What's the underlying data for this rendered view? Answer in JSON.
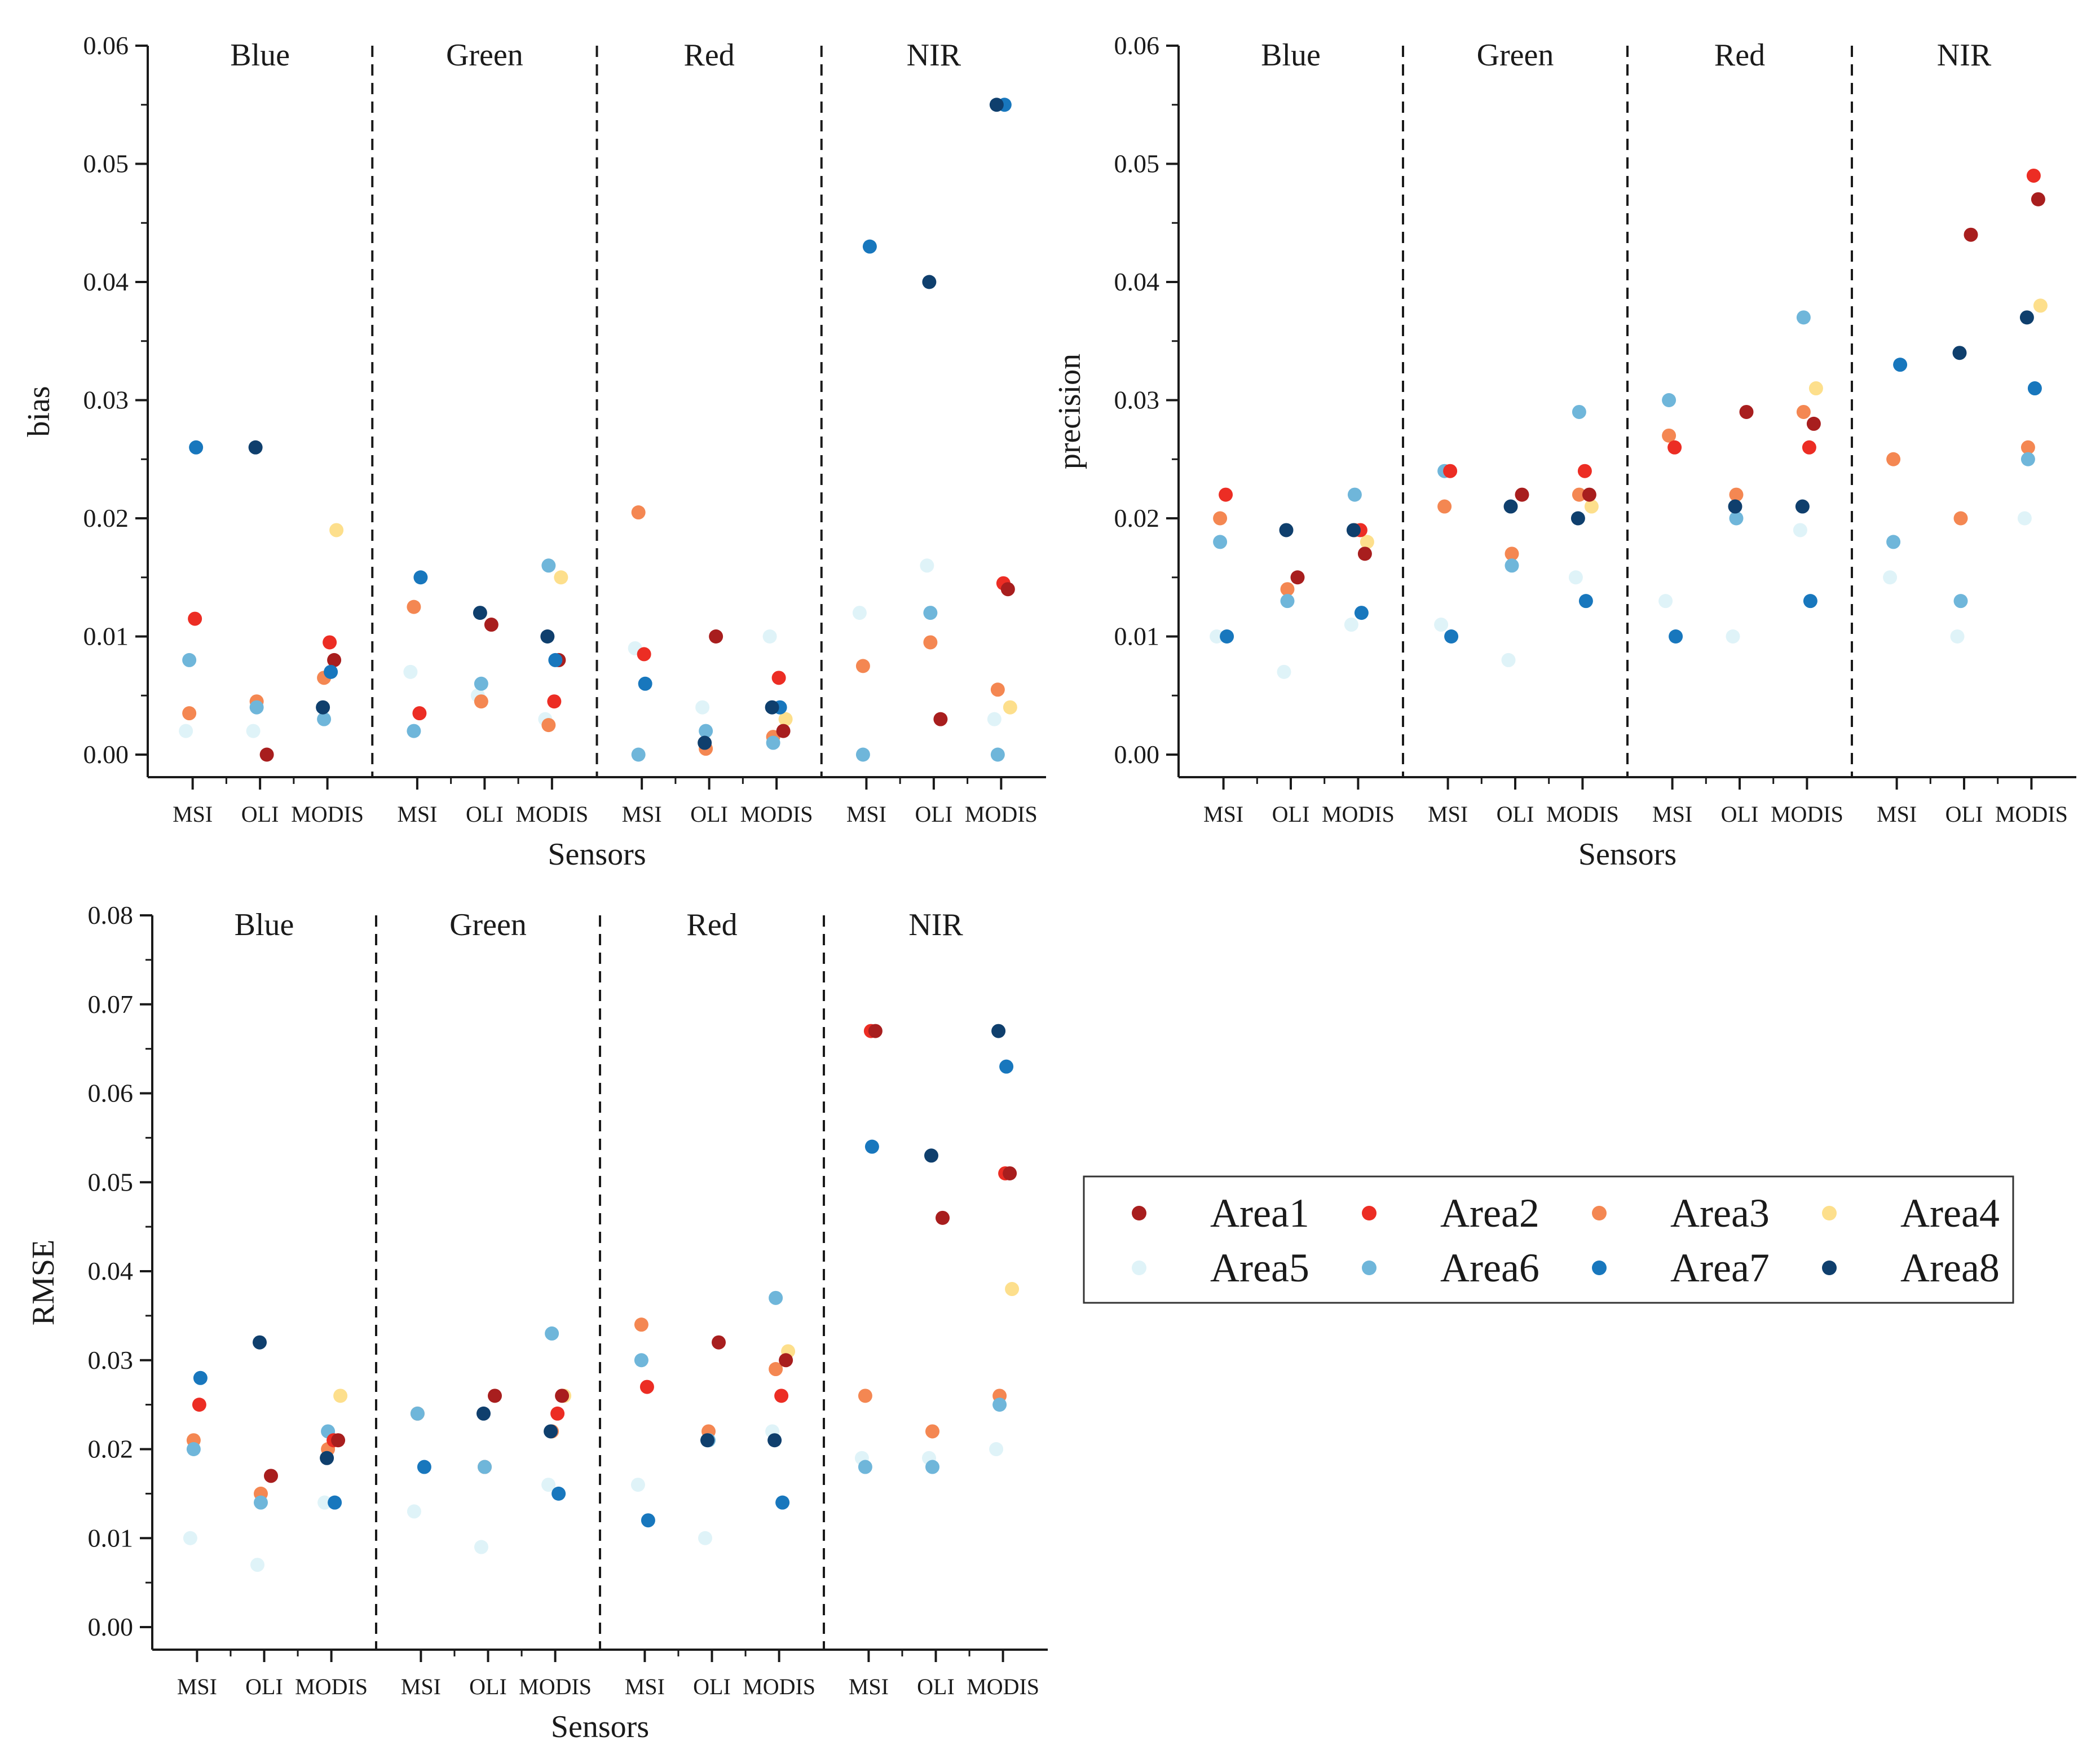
{
  "chart_data": {
    "type": "scatter",
    "colors": {
      "Area1": "#a81e1e",
      "Area2": "#ec2d24",
      "Area3": "#f48752",
      "Area4": "#fddf8c",
      "Area5": "#dff3f8",
      "Area6": "#6fb6da",
      "Area7": "#1877bd",
      "Area8": "#0f3f6d"
    },
    "legend": {
      "position": "right-middle",
      "entries": [
        "Area1",
        "Area2",
        "Area3",
        "Area4",
        "Area5",
        "Area6",
        "Area7",
        "Area8"
      ]
    },
    "bands": [
      "Blue",
      "Green",
      "Red",
      "NIR"
    ],
    "sensors": [
      "MSI",
      "OLI",
      "MODIS"
    ],
    "panels": [
      {
        "id": "bias",
        "ylabel": "bias",
        "xlabel": "Sensors",
        "ylim": [
          0,
          0.06
        ],
        "yticks": [
          "0.00",
          "0.01",
          "0.02",
          "0.03",
          "0.04",
          "0.05",
          "0.06"
        ],
        "data": {
          "Blue": {
            "MSI": {
              "Area2": 0.0115,
              "Area3": 0.0035,
              "Area5": 0.002,
              "Area6": 0.008,
              "Area7": 0.026
            },
            "OLI": {
              "Area1": 0.0,
              "Area3": 0.0045,
              "Area5": 0.002,
              "Area6": 0.004,
              "Area8": 0.026
            },
            "MODIS": {
              "Area1": 0.008,
              "Area2": 0.0095,
              "Area3": 0.0065,
              "Area4": 0.019,
              "Area6": 0.003,
              "Area7": 0.007,
              "Area8": 0.004
            }
          },
          "Green": {
            "MSI": {
              "Area2": 0.0035,
              "Area3": 0.0125,
              "Area5": 0.007,
              "Area6": 0.002,
              "Area7": 0.015
            },
            "OLI": {
              "Area1": 0.011,
              "Area3": 0.0045,
              "Area5": 0.005,
              "Area6": 0.006,
              "Area8": 0.012
            },
            "MODIS": {
              "Area1": 0.008,
              "Area2": 0.0045,
              "Area3": 0.0025,
              "Area4": 0.015,
              "Area5": 0.003,
              "Area6": 0.016,
              "Area7": 0.008,
              "Area8": 0.01
            }
          },
          "Red": {
            "MSI": {
              "Area2": 0.0085,
              "Area3": 0.0205,
              "Area5": 0.009,
              "Area6": 0.0,
              "Area7": 0.006
            },
            "OLI": {
              "Area1": 0.01,
              "Area3": 0.0005,
              "Area5": 0.004,
              "Area6": 0.002,
              "Area8": 0.001
            },
            "MODIS": {
              "Area1": 0.002,
              "Area2": 0.0065,
              "Area3": 0.0015,
              "Area4": 0.003,
              "Area5": 0.01,
              "Area6": 0.001,
              "Area7": 0.004,
              "Area8": 0.004
            }
          },
          "NIR": {
            "MSI": {
              "Area3": 0.0075,
              "Area5": 0.012,
              "Area6": 0.0,
              "Area7": 0.043
            },
            "OLI": {
              "Area1": 0.003,
              "Area3": 0.0095,
              "Area5": 0.016,
              "Area6": 0.012,
              "Area8": 0.04
            },
            "MODIS": {
              "Area1": 0.014,
              "Area2": 0.0145,
              "Area3": 0.0055,
              "Area4": 0.004,
              "Area5": 0.003,
              "Area6": 0.0,
              "Area7": 0.055,
              "Area8": 0.055
            }
          }
        }
      },
      {
        "id": "precision",
        "ylabel": "precision",
        "xlabel": "Sensors",
        "ylim": [
          0,
          0.06
        ],
        "yticks": [
          "0.00",
          "0.01",
          "0.02",
          "0.03",
          "0.04",
          "0.05",
          "0.06"
        ],
        "data": {
          "Blue": {
            "MSI": {
              "Area2": 0.022,
              "Area3": 0.02,
              "Area5": 0.01,
              "Area6": 0.018,
              "Area7": 0.01
            },
            "OLI": {
              "Area1": 0.015,
              "Area3": 0.014,
              "Area5": 0.007,
              "Area6": 0.013,
              "Area8": 0.019
            },
            "MODIS": {
              "Area1": 0.017,
              "Area2": 0.019,
              "Area3": 0.019,
              "Area4": 0.018,
              "Area5": 0.011,
              "Area6": 0.022,
              "Area7": 0.012,
              "Area8": 0.019
            }
          },
          "Green": {
            "MSI": {
              "Area2": 0.024,
              "Area3": 0.021,
              "Area5": 0.011,
              "Area6": 0.024,
              "Area7": 0.01
            },
            "OLI": {
              "Area1": 0.022,
              "Area3": 0.017,
              "Area5": 0.008,
              "Area6": 0.016,
              "Area8": 0.021
            },
            "MODIS": {
              "Area1": 0.022,
              "Area2": 0.024,
              "Area3": 0.022,
              "Area4": 0.021,
              "Area5": 0.015,
              "Area6": 0.029,
              "Area7": 0.013,
              "Area8": 0.02
            }
          },
          "Red": {
            "MSI": {
              "Area2": 0.026,
              "Area3": 0.027,
              "Area5": 0.013,
              "Area6": 0.03,
              "Area7": 0.01
            },
            "OLI": {
              "Area1": 0.029,
              "Area3": 0.022,
              "Area5": 0.01,
              "Area6": 0.02,
              "Area8": 0.021
            },
            "MODIS": {
              "Area1": 0.028,
              "Area2": 0.026,
              "Area3": 0.029,
              "Area4": 0.031,
              "Area5": 0.019,
              "Area6": 0.037,
              "Area7": 0.013,
              "Area8": 0.021
            }
          },
          "NIR": {
            "MSI": {
              "Area3": 0.025,
              "Area5": 0.015,
              "Area6": 0.018,
              "Area7": 0.033
            },
            "OLI": {
              "Area1": 0.044,
              "Area3": 0.02,
              "Area5": 0.01,
              "Area6": 0.013,
              "Area8": 0.034
            },
            "MODIS": {
              "Area1": 0.047,
              "Area2": 0.049,
              "Area3": 0.026,
              "Area4": 0.038,
              "Area5": 0.02,
              "Area6": 0.025,
              "Area7": 0.031,
              "Area8": 0.037
            }
          }
        }
      },
      {
        "id": "rmse",
        "ylabel": "RMSE",
        "xlabel": "Sensors",
        "ylim": [
          0,
          0.08
        ],
        "yticks": [
          "0.00",
          "0.01",
          "0.02",
          "0.03",
          "0.04",
          "0.05",
          "0.06",
          "0.07",
          "0.08"
        ],
        "data": {
          "Blue": {
            "MSI": {
              "Area2": 0.025,
              "Area3": 0.021,
              "Area5": 0.01,
              "Area6": 0.02,
              "Area7": 0.028
            },
            "OLI": {
              "Area1": 0.017,
              "Area3": 0.015,
              "Area5": 0.007,
              "Area6": 0.014,
              "Area8": 0.032
            },
            "MODIS": {
              "Area1": 0.021,
              "Area2": 0.021,
              "Area3": 0.02,
              "Area4": 0.026,
              "Area5": 0.014,
              "Area6": 0.022,
              "Area7": 0.014,
              "Area8": 0.019
            }
          },
          "Green": {
            "MSI": {
              "Area3": 0.024,
              "Area5": 0.013,
              "Area6": 0.024,
              "Area7": 0.018
            },
            "OLI": {
              "Area1": 0.026,
              "Area3": 0.018,
              "Area5": 0.009,
              "Area6": 0.018,
              "Area8": 0.024
            },
            "MODIS": {
              "Area1": 0.026,
              "Area2": 0.024,
              "Area3": 0.022,
              "Area4": 0.026,
              "Area5": 0.016,
              "Area6": 0.033,
              "Area7": 0.015,
              "Area8": 0.022
            }
          },
          "Red": {
            "MSI": {
              "Area2": 0.027,
              "Area3": 0.034,
              "Area5": 0.016,
              "Area6": 0.03,
              "Area7": 0.012
            },
            "OLI": {
              "Area1": 0.032,
              "Area3": 0.022,
              "Area5": 0.01,
              "Area6": 0.021,
              "Area8": 0.021
            },
            "MODIS": {
              "Area1": 0.03,
              "Area2": 0.026,
              "Area3": 0.029,
              "Area4": 0.031,
              "Area5": 0.022,
              "Area6": 0.037,
              "Area7": 0.014,
              "Area8": 0.021
            }
          },
          "NIR": {
            "MSI": {
              "Area1": 0.067,
              "Area2": 0.067,
              "Area3": 0.026,
              "Area5": 0.019,
              "Area6": 0.018,
              "Area7": 0.054
            },
            "OLI": {
              "Area1": 0.046,
              "Area3": 0.022,
              "Area5": 0.019,
              "Area6": 0.018,
              "Area8": 0.053
            },
            "MODIS": {
              "Area1": 0.051,
              "Area2": 0.051,
              "Area3": 0.026,
              "Area4": 0.038,
              "Area5": 0.02,
              "Area6": 0.025,
              "Area7": 0.063,
              "Area8": 0.067
            }
          }
        }
      }
    ]
  }
}
